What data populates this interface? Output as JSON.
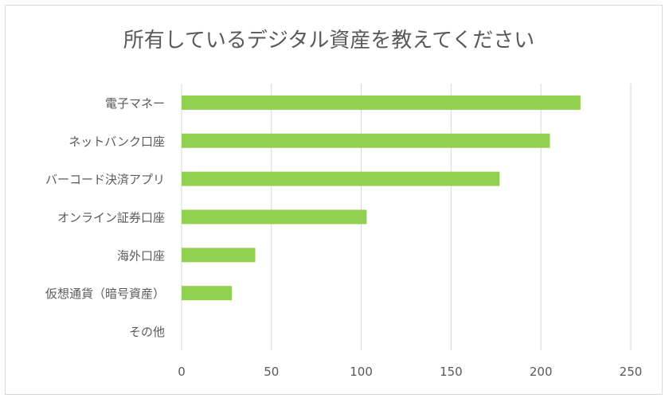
{
  "chart_data": {
    "type": "bar",
    "orientation": "horizontal",
    "title": "所有しているデジタル資産を教えてください",
    "categories": [
      "電子マネー",
      "ネットバンク口座",
      "バーコード決済アプリ",
      "オンライン証券口座",
      "海外口座",
      "仮想通貨（暗号資産）",
      "その他"
    ],
    "values": [
      222,
      205,
      177,
      103,
      41,
      28,
      0
    ],
    "xlim": [
      0,
      250
    ],
    "xticks": [
      0,
      50,
      100,
      150,
      200,
      250
    ],
    "grid": "vertical",
    "legend": "none",
    "bar_color": "#92d050",
    "grid_color": "#d9d9d9",
    "text_color": "#595959"
  }
}
